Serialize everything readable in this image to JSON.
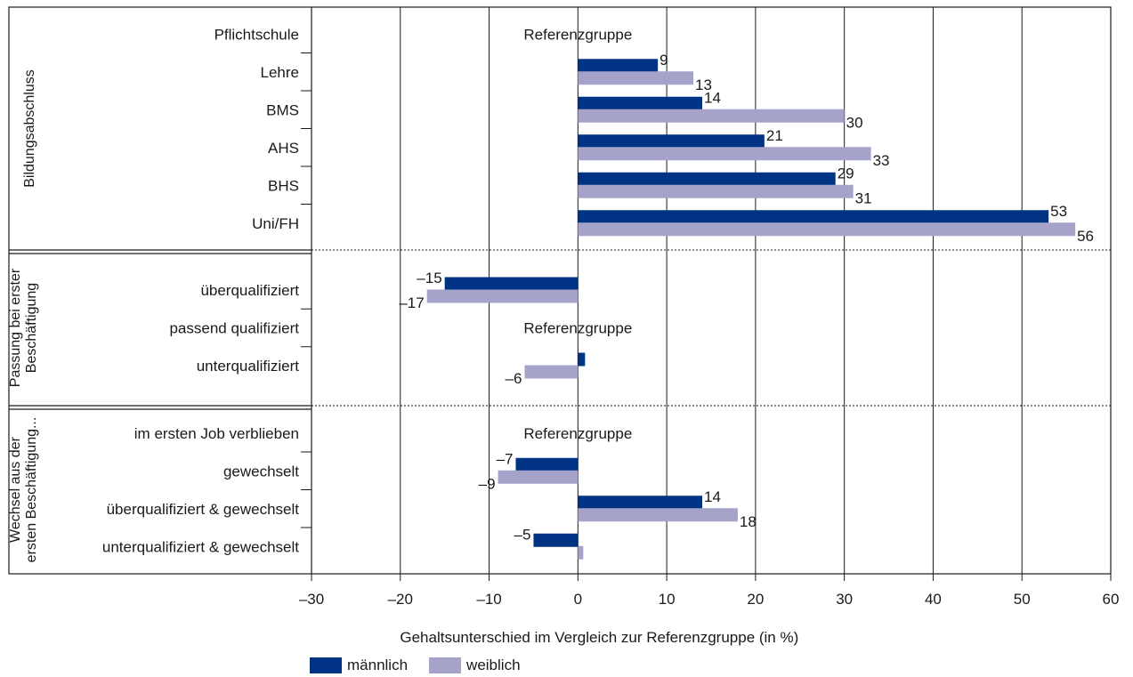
{
  "colors": {
    "male": "#003383",
    "female": "#a6a3ca",
    "grid": "#1a1a1a"
  },
  "chart_data": {
    "type": "bar",
    "orientation": "horizontal",
    "xlabel": "Gehaltsunterschied im Vergleich zur Referenzgruppe (in %)",
    "xlim": [
      -30,
      60
    ],
    "xticks": [
      -30,
      -20,
      -10,
      0,
      10,
      20,
      30,
      40,
      50,
      60
    ],
    "xtick_labels": [
      "–30",
      "–20",
      "–10",
      "0",
      "10",
      "20",
      "30",
      "40",
      "50",
      "60"
    ],
    "grid": "vertical",
    "legend": {
      "position": "bottom-left",
      "entries": [
        "männlich",
        "weiblich"
      ]
    },
    "series_names": [
      "männlich",
      "weiblich"
    ],
    "reference_label": "Referenzgruppe",
    "groups": [
      {
        "name": "Bildungsabschluss",
        "categories": [
          {
            "label": "Pflichtschule",
            "reference": true
          },
          {
            "label": "Lehre",
            "male": 9,
            "female": 13,
            "male_label": "9",
            "female_label": "13"
          },
          {
            "label": "BMS",
            "male": 14,
            "female": 30,
            "male_label": "14",
            "female_label": "30"
          },
          {
            "label": "AHS",
            "male": 21,
            "female": 33,
            "male_label": "21",
            "female_label": "33"
          },
          {
            "label": "BHS",
            "male": 29,
            "female": 31,
            "male_label": "29",
            "female_label": "31"
          },
          {
            "label": "Uni/FH",
            "male": 53,
            "female": 56,
            "male_label": "53",
            "female_label": "56"
          }
        ]
      },
      {
        "name": "Passung bei erster Beschäftigung",
        "name_lines": [
          "Passung bei erster",
          "Beschäftigung"
        ],
        "categories": [
          {
            "label": "überqualifiziert",
            "male": -15,
            "female": -17,
            "male_label": "–15",
            "female_label": "–17"
          },
          {
            "label": "passend qualifiziert",
            "reference": true
          },
          {
            "label": "unterqualifiziert",
            "male": 0.8,
            "female": -6,
            "male_label": "",
            "female_label": "–6"
          }
        ]
      },
      {
        "name": "Wechsel aus der ersten Beschäftigung...",
        "name_lines": [
          "Wechsel aus der",
          "ersten Beschäftigung..."
        ],
        "categories": [
          {
            "label": "im ersten Job verblieben",
            "reference": true
          },
          {
            "label": "gewechselt",
            "male": -7,
            "female": -9,
            "male_label": "–7",
            "female_label": "–9"
          },
          {
            "label": "überqualifiziert & gewechselt",
            "male": 14,
            "female": 18,
            "male_label": "14",
            "female_label": "18"
          },
          {
            "label": "unterqualifiziert & gewechselt",
            "male": -5,
            "female": 0.6,
            "male_label": "–5",
            "female_label": ""
          }
        ]
      }
    ]
  }
}
